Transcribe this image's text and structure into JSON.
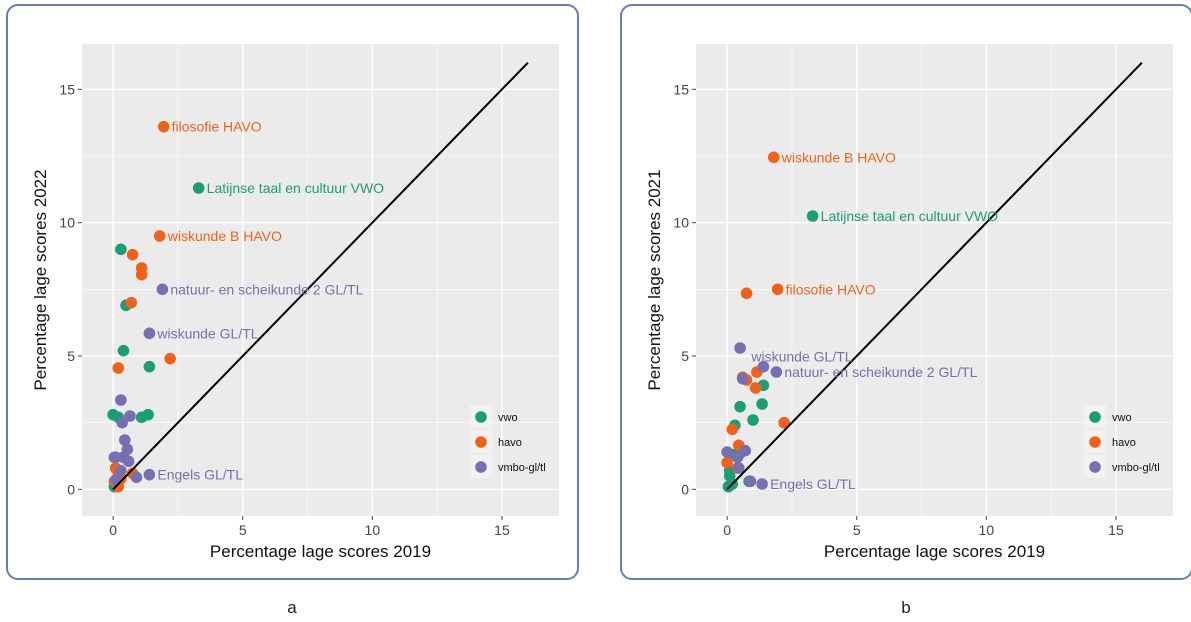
{
  "colors": {
    "vwo": "#1b9e77",
    "havo": "#f0621a",
    "vmbo": "#7570b3",
    "panel_bg": "#ebebeb",
    "grid": "#ffffff"
  },
  "captions": {
    "a": "a",
    "b": "b"
  },
  "chart_data": [
    {
      "id": "a",
      "type": "scatter",
      "xlabel": "Percentage lage scores 2019",
      "ylabel": "Percentage lage scores 2022",
      "xlim": [
        -1.2,
        17.2
      ],
      "ylim": [
        -1.0,
        16.7
      ],
      "x_ticks": [
        0,
        5,
        10,
        15
      ],
      "y_ticks": [
        0,
        5,
        10,
        15
      ],
      "x_tick_labels": [
        "0",
        "5",
        "10",
        "15"
      ],
      "y_tick_labels": [
        "0",
        "5",
        "10",
        "15"
      ],
      "reference_line": [
        [
          0,
          0
        ],
        [
          16,
          16
        ]
      ],
      "grid": true,
      "legend": {
        "position": "bottom-right",
        "entries": [
          "vwo",
          "havo",
          "vmbo-gl/tl"
        ]
      },
      "series": [
        {
          "name": "vwo",
          "key": "vwo",
          "points": [
            [
              3.3,
              11.3
            ],
            [
              0.3,
              9.0
            ],
            [
              0.5,
              6.9
            ],
            [
              0.4,
              5.2
            ],
            [
              1.4,
              4.6
            ],
            [
              0.0,
              2.8
            ],
            [
              0.2,
              2.7
            ],
            [
              1.1,
              2.7
            ],
            [
              1.35,
              2.8
            ],
            [
              0.1,
              1.2
            ],
            [
              0.15,
              0.3
            ],
            [
              0.05,
              0.1
            ]
          ]
        },
        {
          "name": "havo",
          "key": "havo",
          "points": [
            [
              1.95,
              13.6
            ],
            [
              1.8,
              9.5
            ],
            [
              0.75,
              8.8
            ],
            [
              1.1,
              8.3
            ],
            [
              1.1,
              8.05
            ],
            [
              0.7,
              7.0
            ],
            [
              2.2,
              4.9
            ],
            [
              0.2,
              4.55
            ],
            [
              0.1,
              0.8
            ],
            [
              0.2,
              0.6
            ],
            [
              0.3,
              0.4
            ],
            [
              0.75,
              0.6
            ],
            [
              0.2,
              0.1
            ],
            [
              0.05,
              0.3
            ]
          ]
        },
        {
          "name": "vmbo-gl/tl",
          "key": "vmbo",
          "points": [
            [
              1.9,
              7.5
            ],
            [
              1.4,
              5.85
            ],
            [
              0.3,
              3.35
            ],
            [
              0.35,
              2.5
            ],
            [
              0.65,
              2.75
            ],
            [
              0.45,
              1.85
            ],
            [
              0.55,
              1.5
            ],
            [
              0.4,
              1.2
            ],
            [
              0.6,
              1.05
            ],
            [
              0.05,
              1.2
            ],
            [
              1.4,
              0.55
            ],
            [
              0.9,
              0.45
            ],
            [
              0.3,
              0.7
            ],
            [
              0.1,
              0.35
            ]
          ]
        }
      ],
      "annotations": [
        {
          "x": 1.95,
          "y": 13.6,
          "text": "filosofie HAVO",
          "series": "havo"
        },
        {
          "x": 3.3,
          "y": 11.3,
          "text": "Latijnse taal en cultuur VWO",
          "series": "vwo"
        },
        {
          "x": 1.8,
          "y": 9.5,
          "text": "wiskunde B HAVO",
          "series": "havo"
        },
        {
          "x": 1.9,
          "y": 7.5,
          "text": "natuur- en scheikunde 2 GL/TL",
          "series": "vmbo"
        },
        {
          "x": 1.4,
          "y": 5.85,
          "text": "wiskunde GL/TL",
          "series": "vmbo"
        },
        {
          "x": 1.4,
          "y": 0.55,
          "text": "Engels GL/TL",
          "series": "vmbo"
        }
      ]
    },
    {
      "id": "b",
      "type": "scatter",
      "xlabel": "Percentage lage scores 2019",
      "ylabel": "Percentage lage scores 2021",
      "xlim": [
        -1.2,
        17.2
      ],
      "ylim": [
        -1.0,
        16.7
      ],
      "x_ticks": [
        0,
        5,
        10,
        15
      ],
      "y_ticks": [
        0,
        5,
        10,
        15
      ],
      "x_tick_labels": [
        "0",
        "5",
        "10",
        "15"
      ],
      "y_tick_labels": [
        "0",
        "5",
        "10",
        "15"
      ],
      "reference_line": [
        [
          0,
          0
        ],
        [
          16,
          16
        ]
      ],
      "grid": true,
      "legend": {
        "position": "bottom-right",
        "entries": [
          "vwo",
          "havo",
          "vmbo-gl/tl"
        ]
      },
      "series": [
        {
          "name": "vwo",
          "key": "vwo",
          "points": [
            [
              3.3,
              10.25
            ],
            [
              1.4,
              3.9
            ],
            [
              1.35,
              3.2
            ],
            [
              0.5,
              3.1
            ],
            [
              1.0,
              2.6
            ],
            [
              0.3,
              2.4
            ],
            [
              0.25,
              1.3
            ],
            [
              0.1,
              1.3
            ],
            [
              0.5,
              1.35
            ],
            [
              0.1,
              0.7
            ],
            [
              0.1,
              0.5
            ],
            [
              0.85,
              0.3
            ],
            [
              0.2,
              0.2
            ],
            [
              0.05,
              0.1
            ]
          ]
        },
        {
          "name": "havo",
          "key": "havo",
          "points": [
            [
              1.8,
              12.45
            ],
            [
              0.75,
              7.35
            ],
            [
              1.95,
              7.5
            ],
            [
              0.75,
              4.1
            ],
            [
              1.15,
              4.4
            ],
            [
              1.1,
              3.8
            ],
            [
              0.6,
              4.2
            ],
            [
              2.2,
              2.5
            ],
            [
              0.2,
              2.25
            ],
            [
              0.45,
              1.65
            ],
            [
              0.0,
              1.0
            ],
            [
              0.4,
              0.8
            ]
          ]
        },
        {
          "name": "vmbo-gl/tl",
          "key": "vmbo",
          "points": [
            [
              0.5,
              5.3
            ],
            [
              1.4,
              4.6
            ],
            [
              1.9,
              4.4
            ],
            [
              0.6,
              4.15
            ],
            [
              0.7,
              1.45
            ],
            [
              0.0,
              1.4
            ],
            [
              0.4,
              1.2
            ],
            [
              0.45,
              0.8
            ],
            [
              1.35,
              0.2
            ],
            [
              0.9,
              0.3
            ]
          ]
        }
      ],
      "annotations": [
        {
          "x": 1.8,
          "y": 12.45,
          "text": "wiskunde B HAVO",
          "series": "havo"
        },
        {
          "x": 3.3,
          "y": 10.25,
          "text": "Latijnse taal en cultuur VWO",
          "series": "vwo"
        },
        {
          "x": 1.95,
          "y": 7.5,
          "text": "filosofie HAVO",
          "series": "havo"
        },
        {
          "x": 1.4,
          "y": 4.6,
          "text": "wiskunde GL/TL",
          "series": "vmbo",
          "align": "above"
        },
        {
          "x": 1.9,
          "y": 4.4,
          "text": "natuur- en scheikunde 2 GL/TL",
          "series": "vmbo"
        },
        {
          "x": 1.35,
          "y": 0.2,
          "text": "Engels GL/TL",
          "series": "vmbo"
        }
      ]
    }
  ]
}
